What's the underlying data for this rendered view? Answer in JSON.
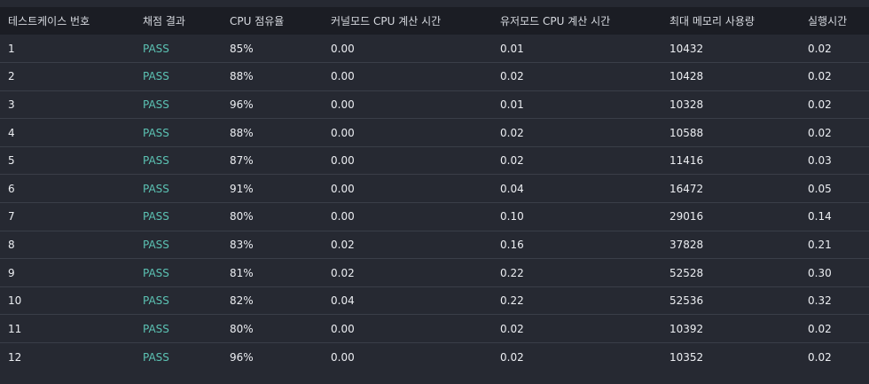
{
  "headers": [
    "테스트케이스 번호",
    "채점 결과",
    "CPU 점유율",
    "커널모드 CPU 계산 시간",
    "유저모드 CPU 계산 시간",
    "최대 메모리 사용량",
    "실행시간"
  ],
  "rows": [
    [
      "1",
      "PASS",
      "85%",
      "0.00",
      "0.01",
      "10432",
      "0.02"
    ],
    [
      "2",
      "PASS",
      "88%",
      "0.00",
      "0.02",
      "10428",
      "0.02"
    ],
    [
      "3",
      "PASS",
      "96%",
      "0.00",
      "0.01",
      "10328",
      "0.02"
    ],
    [
      "4",
      "PASS",
      "88%",
      "0.00",
      "0.02",
      "10588",
      "0.02"
    ],
    [
      "5",
      "PASS",
      "87%",
      "0.00",
      "0.02",
      "11416",
      "0.03"
    ],
    [
      "6",
      "PASS",
      "91%",
      "0.00",
      "0.04",
      "16472",
      "0.05"
    ],
    [
      "7",
      "PASS",
      "80%",
      "0.00",
      "0.10",
      "29016",
      "0.14"
    ],
    [
      "8",
      "PASS",
      "83%",
      "0.02",
      "0.16",
      "37828",
      "0.21"
    ],
    [
      "9",
      "PASS",
      "81%",
      "0.02",
      "0.22",
      "52528",
      "0.30"
    ],
    [
      "10",
      "PASS",
      "82%",
      "0.04",
      "0.22",
      "52536",
      "0.32"
    ],
    [
      "11",
      "PASS",
      "80%",
      "0.00",
      "0.02",
      "10392",
      "0.02"
    ],
    [
      "12",
      "PASS",
      "96%",
      "0.00",
      "0.02",
      "10352",
      "0.02"
    ]
  ],
  "colors": {
    "background": "#262932",
    "header_background": "#1b1d24",
    "pass": "#5cc3b4",
    "text": "#eceef2"
  }
}
